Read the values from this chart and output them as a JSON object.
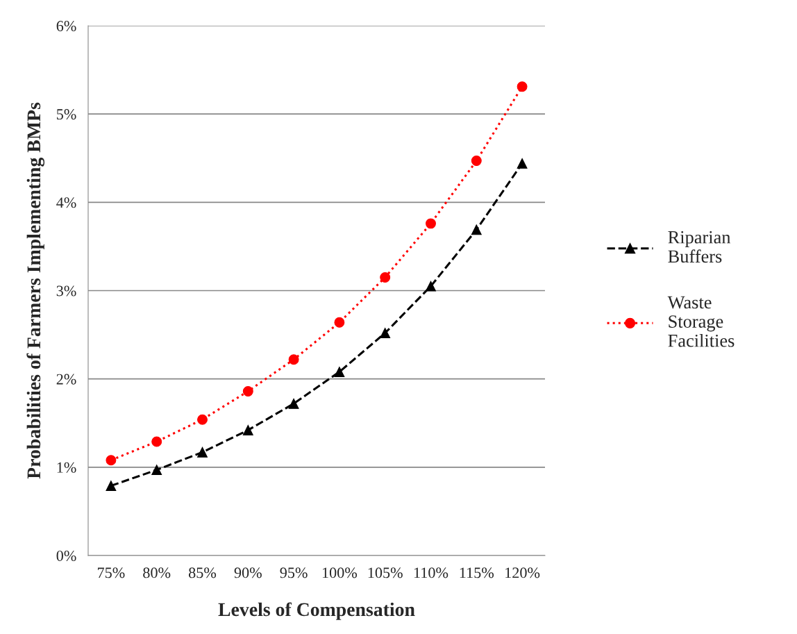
{
  "chart_data": {
    "type": "line",
    "xlabel": "Levels of Compensation",
    "ylabel": "Probabilities of Farmers Implementing BMPs",
    "categories": [
      "75%",
      "80%",
      "85%",
      "90%",
      "95%",
      "100%",
      "105%",
      "110%",
      "115%",
      "120%"
    ],
    "series": [
      {
        "name": "Riparian Buffers",
        "color": "#000000",
        "marker": "triangle",
        "line_style": "dashed",
        "values": [
          0.79,
          0.97,
          1.17,
          1.42,
          1.72,
          2.08,
          2.52,
          3.05,
          3.69,
          4.44
        ]
      },
      {
        "name": "Waste Storage Facilities",
        "color": "#ff0000",
        "marker": "circle",
        "line_style": "dotted",
        "values": [
          1.08,
          1.29,
          1.54,
          1.86,
          2.22,
          2.64,
          3.15,
          3.76,
          4.47,
          5.31
        ]
      }
    ],
    "ylim": [
      0,
      6
    ],
    "yticks": [
      {
        "value": 0,
        "label": "0%"
      },
      {
        "value": 1,
        "label": "1%"
      },
      {
        "value": 2,
        "label": "2%"
      },
      {
        "value": 3,
        "label": "3%"
      },
      {
        "value": 4,
        "label": "4%"
      },
      {
        "value": 5,
        "label": "5%"
      },
      {
        "value": 6,
        "label": "6%"
      }
    ],
    "grid": "y",
    "legend": "right"
  }
}
